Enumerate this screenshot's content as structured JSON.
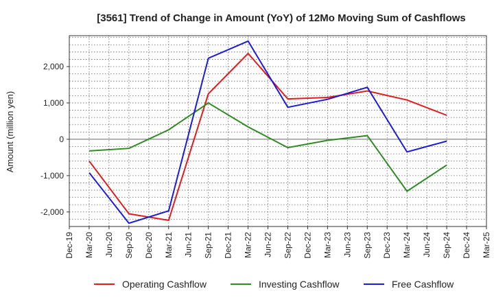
{
  "chart_data": {
    "type": "line",
    "title": "[3561]  Trend of Change in Amount (YoY) of 12Mo Moving Sum of Cashflows",
    "xlabel": "",
    "ylabel": "Amount (million yen)",
    "categories": [
      "Dec-19",
      "Mar-20",
      "Jun-20",
      "Sep-20",
      "Dec-20",
      "Mar-21",
      "Jun-21",
      "Sep-21",
      "Dec-21",
      "Mar-22",
      "Jun-22",
      "Sep-22",
      "Dec-22",
      "Mar-23",
      "Jun-23",
      "Sep-23",
      "Dec-23",
      "Mar-24",
      "Jun-24",
      "Sep-24",
      "Dec-24",
      "Mar-25"
    ],
    "ylim": [
      -2400,
      2850
    ],
    "yticks": [
      -2000,
      -1000,
      0,
      1000,
      2000
    ],
    "ytick_labels": [
      "-2,000",
      "-1,000",
      "0",
      "1,000",
      "2,000"
    ],
    "grid": true,
    "legend_position": "bottom",
    "series": [
      {
        "name": "Operating Cashflow",
        "color": "#e31a1c",
        "values": [
          null,
          -600,
          null,
          -2050,
          null,
          -2230,
          null,
          1250,
          null,
          2360,
          null,
          1110,
          null,
          1150,
          null,
          1330,
          null,
          1080,
          null,
          660,
          null,
          null
        ]
      },
      {
        "name": "Investing Cashflow",
        "color": "#2e8b22",
        "values": [
          null,
          -320,
          null,
          -250,
          null,
          260,
          null,
          1000,
          null,
          340,
          null,
          -230,
          null,
          -30,
          null,
          100,
          null,
          -1430,
          null,
          -710,
          null,
          null
        ]
      },
      {
        "name": "Free Cashflow",
        "color": "#1a1adb",
        "values": [
          null,
          -920,
          null,
          -2310,
          null,
          -1970,
          null,
          2230,
          null,
          2700,
          null,
          880,
          null,
          1100,
          null,
          1430,
          null,
          -350,
          null,
          -50,
          null,
          null
        ]
      }
    ]
  }
}
